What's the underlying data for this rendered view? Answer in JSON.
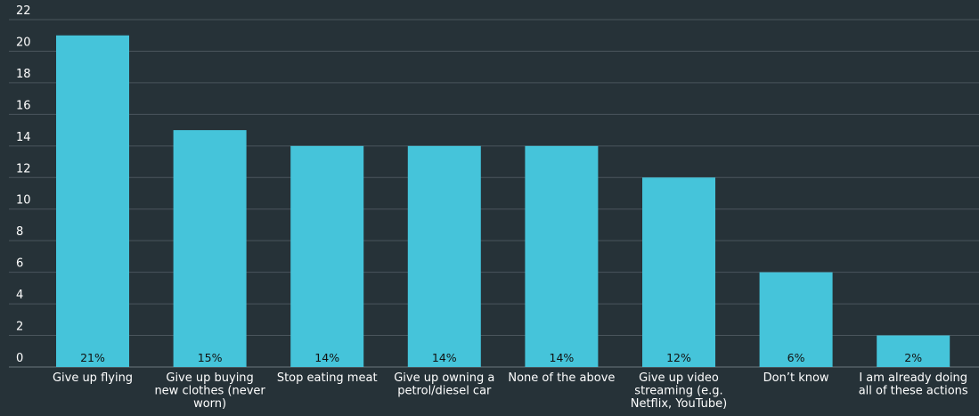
{
  "chart_data": {
    "type": "bar",
    "title": "",
    "xlabel": "",
    "ylabel": "",
    "ylim": [
      0,
      22
    ],
    "yticks": [
      0,
      2,
      4,
      6,
      8,
      10,
      12,
      14,
      16,
      18,
      20,
      22
    ],
    "grid": true,
    "categories": [
      "Give up flying",
      "Give up buying new clothes (never worn)",
      "Stop eating meat",
      "Give up owning a petrol/diesel car",
      "None of the above",
      "Give up video streaming (e.g. Netflix, YouTube)",
      "Don’t know",
      "I am already doing all of these actions"
    ],
    "category_lines": [
      [
        "Give up flying"
      ],
      [
        "Give up buying",
        "new clothes (never",
        "worn)"
      ],
      [
        "Stop eating meat"
      ],
      [
        "Give up owning a",
        "petrol/diesel car"
      ],
      [
        "None of the above"
      ],
      [
        "Give up video",
        "streaming (e.g.",
        "Netflix, YouTube)"
      ],
      [
        "Don’t know"
      ],
      [
        "I am already doing",
        "all of these actions"
      ]
    ],
    "values": [
      21,
      15,
      14,
      14,
      14,
      12,
      6,
      2
    ],
    "data_labels": [
      "21%",
      "15%",
      "14%",
      "14%",
      "14%",
      "12%",
      "6%",
      "2%"
    ],
    "colors": {
      "background": "#263238",
      "bar": "#45c4da",
      "grid": "#4a555c",
      "text": "#ffffff",
      "value_label": "#111111"
    }
  }
}
